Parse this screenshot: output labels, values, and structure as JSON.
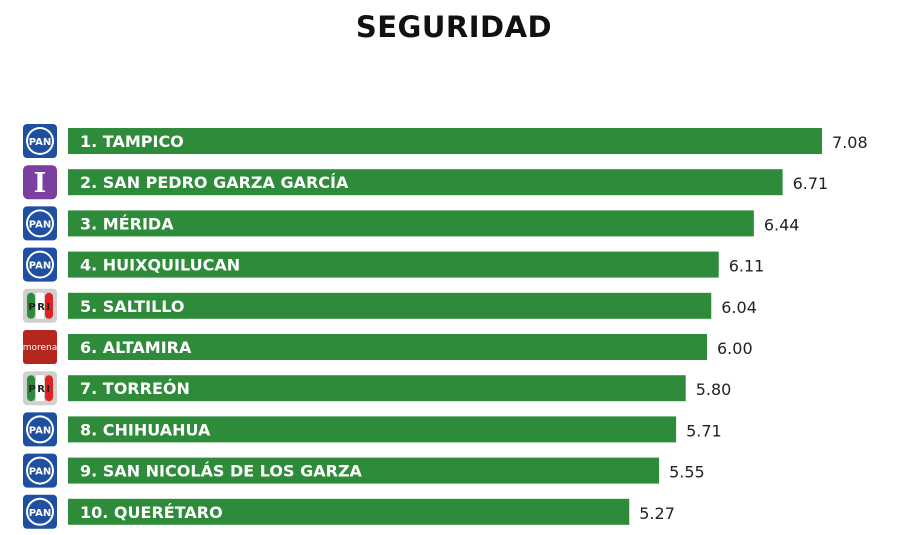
{
  "chart_data": {
    "type": "bar",
    "orientation": "horizontal",
    "title": "SEGURIDAD",
    "xlabel": "",
    "ylabel": "",
    "xlim": [
      0,
      7.08
    ],
    "grid": false,
    "bar_color": "#2e8b3a",
    "categories": [
      "1. TAMPICO",
      "2. SAN PEDRO GARZA GARCÍA",
      "3. MÉRIDA",
      "4. HUIXQUILUCAN",
      "5. SALTILLO",
      "6. ALTAMIRA",
      "7. TORREÓN",
      "8. CHIHUAHUA",
      "9. SAN NICOLÁS DE LOS GARZA",
      "10. QUERÉTARO"
    ],
    "values": [
      7.08,
      6.71,
      6.44,
      6.11,
      6.04,
      6.0,
      5.8,
      5.71,
      5.55,
      5.27
    ],
    "value_labels": [
      "7.08",
      "6.71",
      "6.44",
      "6.11",
      "6.04",
      "6.00",
      "5.80",
      "5.71",
      "5.55",
      "5.27"
    ],
    "parties": [
      "PAN",
      "I",
      "PAN",
      "PAN",
      "PRI",
      "morena",
      "PRI",
      "PAN",
      "PAN",
      "PAN"
    ]
  },
  "party_colors": {
    "PAN": "#1f4fa0",
    "I": "#7b3fa0",
    "PRI": "#c8c8c8",
    "morena": "#b5261e"
  }
}
